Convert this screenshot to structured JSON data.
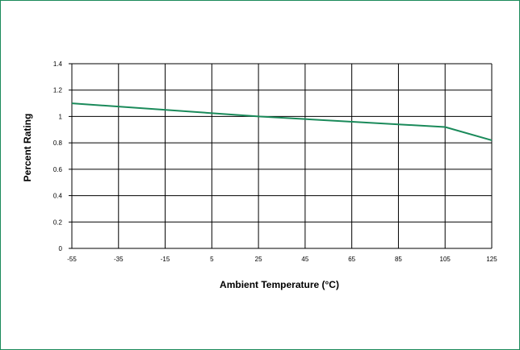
{
  "colors": {
    "frame_border": "#1a8a5a",
    "series_line": "#1a8a5a",
    "grid": "#000000"
  },
  "chart_data": {
    "type": "line",
    "title": "",
    "xlabel": "Ambient Temperature (°C)",
    "ylabel": "Percent Rating",
    "xlim": [
      -55,
      125
    ],
    "ylim": [
      0,
      1.4
    ],
    "x_ticks": [
      "-55",
      "-35",
      "-15",
      "5",
      "25",
      "45",
      "65",
      "85",
      "105",
      "125"
    ],
    "y_ticks": [
      "0",
      "0.2",
      "0.4",
      "0.6",
      "0.8",
      "1",
      "1.2",
      "1.4"
    ],
    "grid": true,
    "series": [
      {
        "x": [
          -55,
          25,
          105,
          125
        ],
        "y": [
          1.1,
          1.0,
          0.92,
          0.82
        ]
      }
    ]
  }
}
